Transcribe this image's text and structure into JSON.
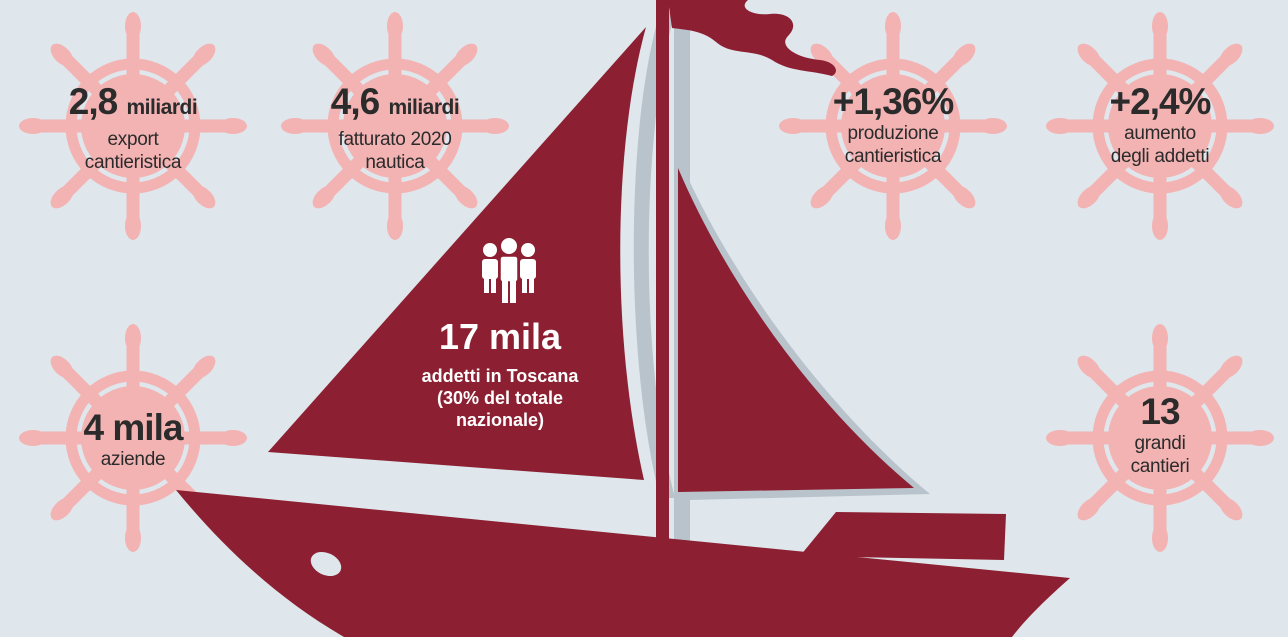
{
  "colors": {
    "background": "#dfe6ec",
    "boat_red": "#8c2032",
    "wheel_pink": "#f3b3b3",
    "shadow": "#b9c3cc"
  },
  "icons": [
    "ship-wheel-icon",
    "people-icon"
  ],
  "stats": {
    "export": {
      "value": "2,8",
      "unit": "miliardi",
      "line1": "export",
      "line2": "cantieristica"
    },
    "fatturato": {
      "value": "4,6",
      "unit": "miliardi",
      "line1": "fatturato 2020",
      "line2": "nautica"
    },
    "produzione": {
      "value": "+1,36%",
      "line1": "produzione",
      "line2": "cantieristica"
    },
    "addetti_aumento": {
      "value": "+2,4%",
      "line1": "aumento",
      "line2": "degli addetti"
    },
    "aziende": {
      "value": "4 mila",
      "line1": "aziende"
    },
    "cantieri": {
      "value": "13",
      "line1": "grandi",
      "line2": "cantieri"
    }
  },
  "sail": {
    "value": "17 mila",
    "line1": "addetti in Toscana",
    "line2": "(30% del totale",
    "line3": "nazionale)"
  }
}
